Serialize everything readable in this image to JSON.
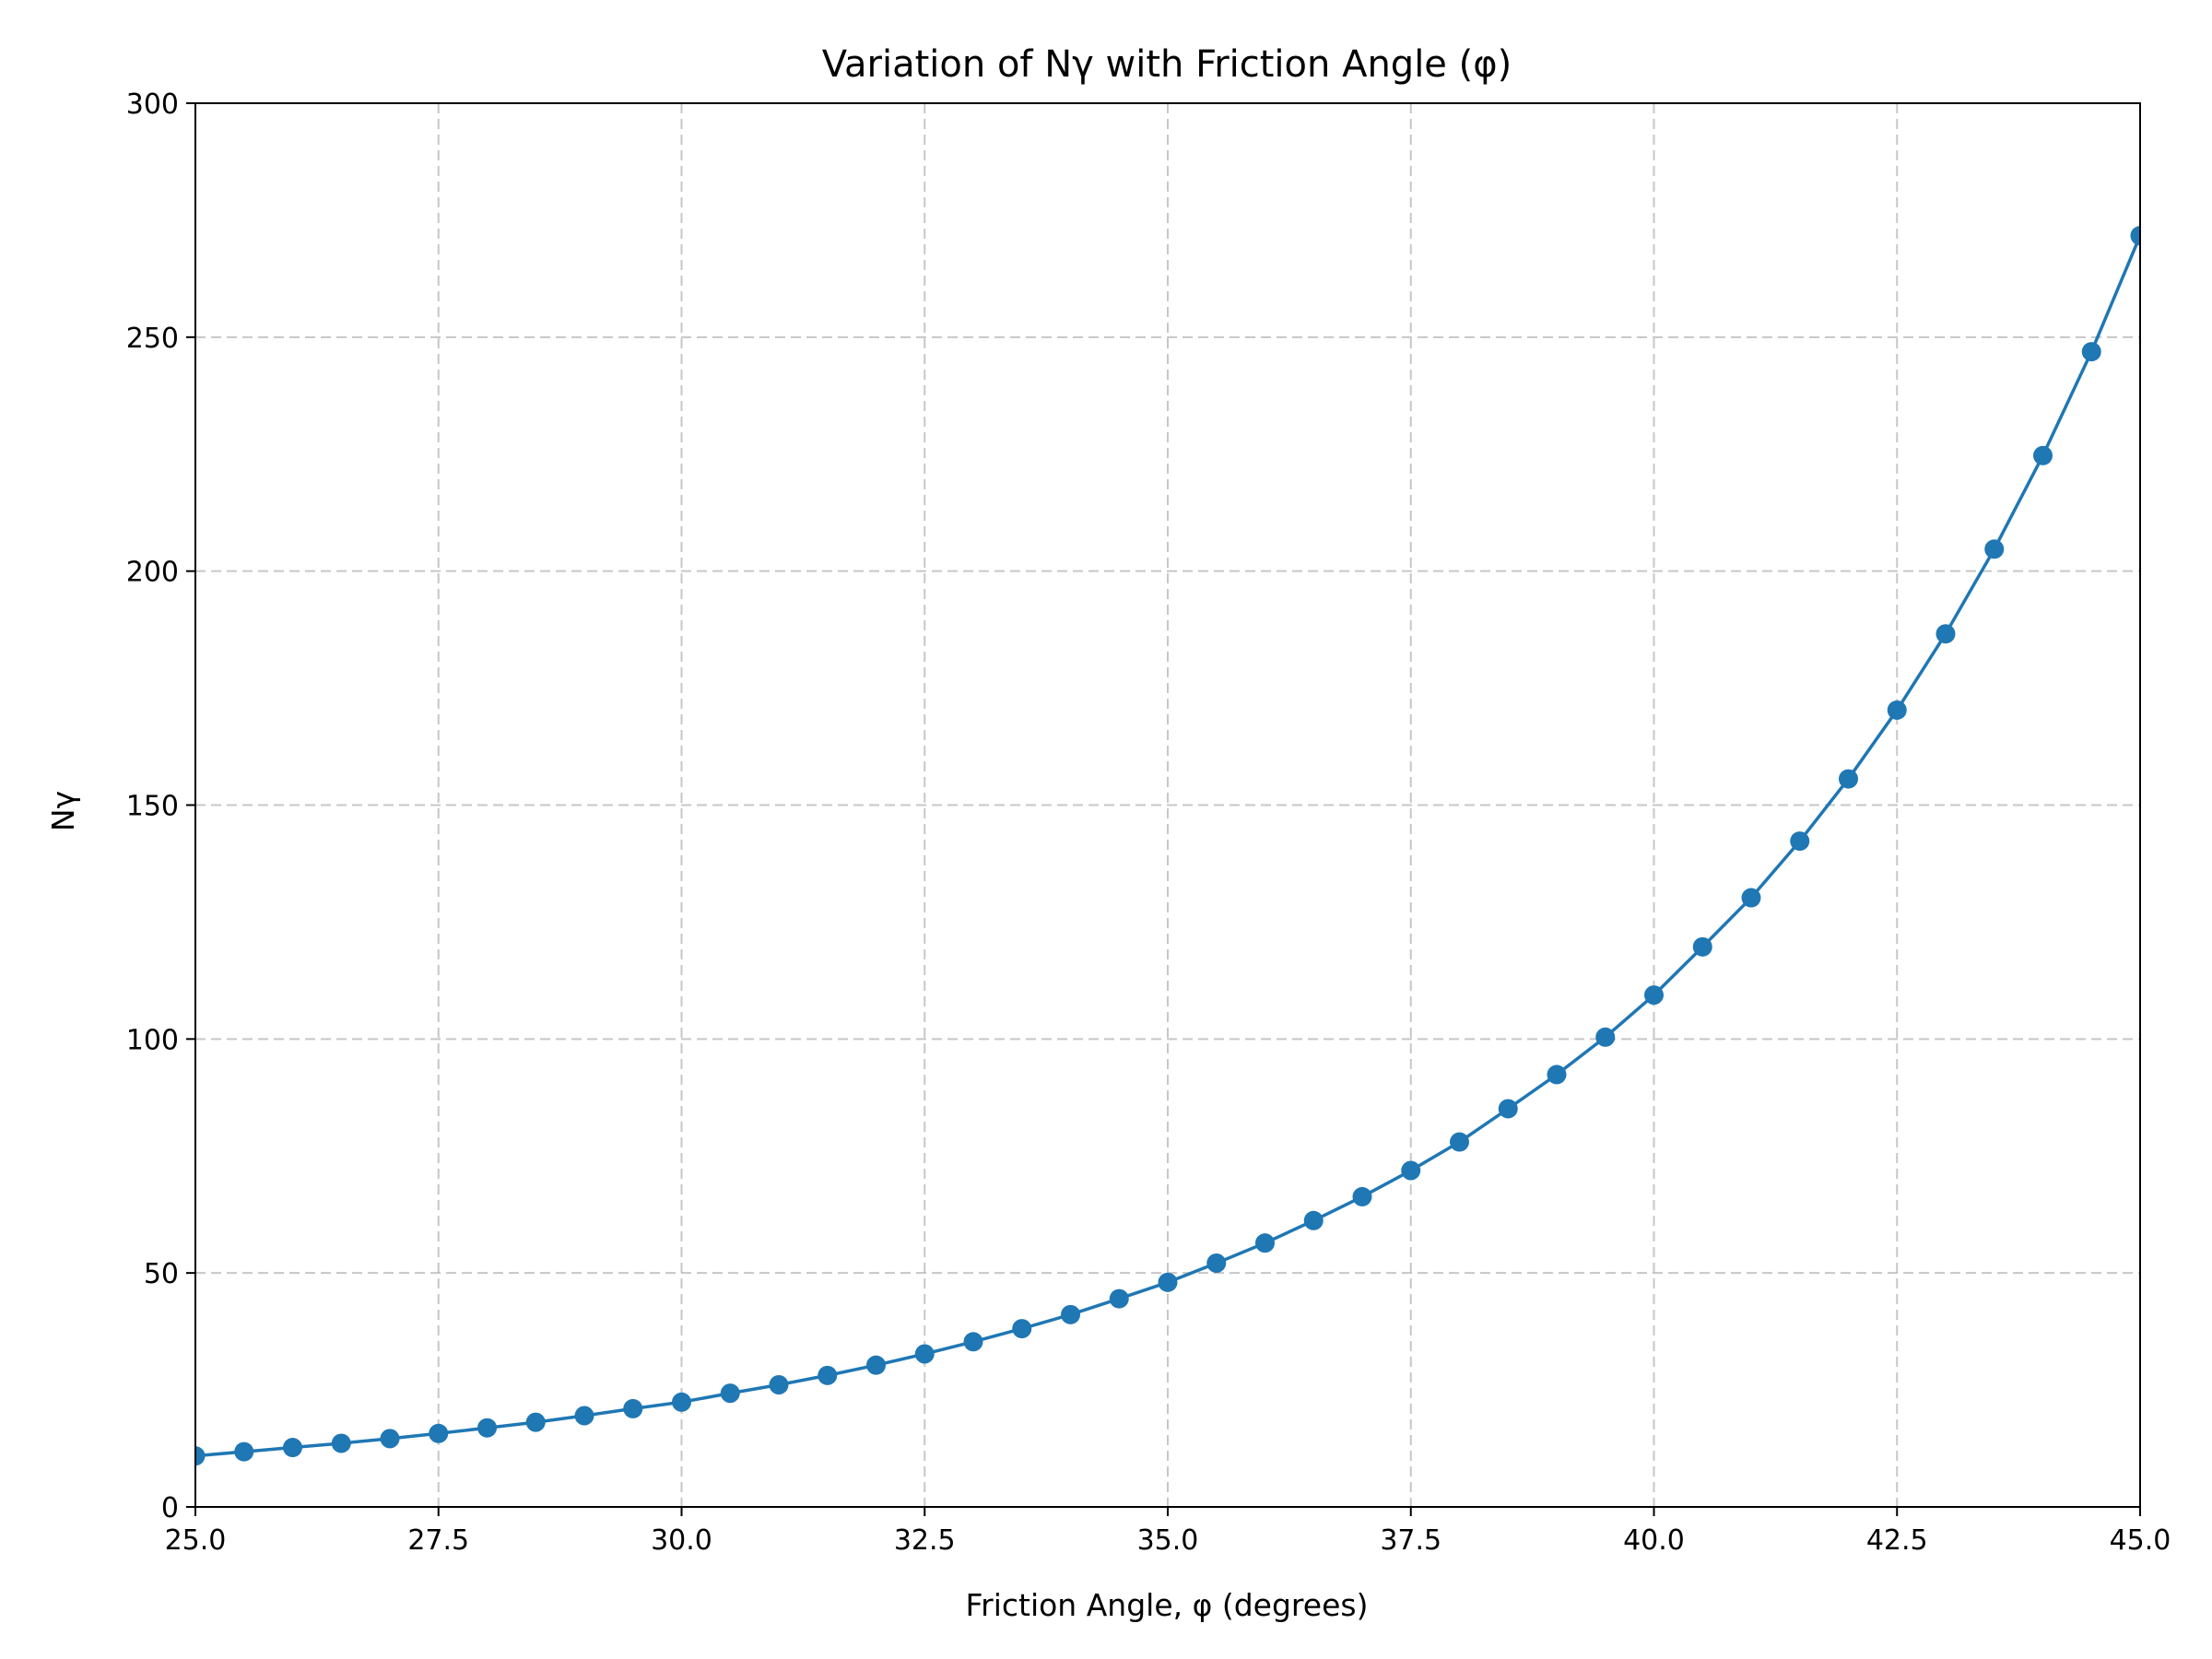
{
  "chart_data": {
    "type": "line",
    "title": "Variation of Nγ with Friction Angle (φ)",
    "xlabel": "Friction Angle, φ (degrees)",
    "ylabel": "Nγ",
    "xlim": [
      25.0,
      45.0
    ],
    "ylim": [
      0,
      300
    ],
    "grid": true,
    "legend": "none",
    "xticks": [
      "25.0",
      "27.5",
      "30.0",
      "32.5",
      "35.0",
      "37.5",
      "40.0",
      "42.5",
      "45.0"
    ],
    "yticks": [
      "0",
      "50",
      "100",
      "150",
      "200",
      "250",
      "300"
    ],
    "line_color": "#1f77b4",
    "marker": "circle",
    "series": [
      {
        "x": [
          25.0,
          25.5,
          26.0,
          26.5,
          27.0,
          27.5,
          28.0,
          28.5,
          29.0,
          29.5,
          30.0,
          30.5,
          31.0,
          31.5,
          32.0,
          32.5,
          33.0,
          33.5,
          34.0,
          34.5,
          35.0,
          35.5,
          36.0,
          36.5,
          37.0,
          37.5,
          38.0,
          38.5,
          39.0,
          39.5,
          40.0,
          40.5,
          41.0,
          41.5,
          42.0,
          42.5,
          43.0,
          43.5,
          44.0,
          44.5,
          45.0
        ],
        "y": [
          10.9,
          11.8,
          12.7,
          13.6,
          14.6,
          15.7,
          16.9,
          18.1,
          19.5,
          21.0,
          22.4,
          24.3,
          26.1,
          28.1,
          30.3,
          32.7,
          35.3,
          38.1,
          41.1,
          44.5,
          48.0,
          52.1,
          56.4,
          61.2,
          66.3,
          71.9,
          78.0,
          85.1,
          92.4,
          100.4,
          109.4,
          119.7,
          130.2,
          142.3,
          155.6,
          170.3,
          186.6,
          204.7,
          224.7,
          246.9,
          271.7
        ]
      }
    ]
  }
}
